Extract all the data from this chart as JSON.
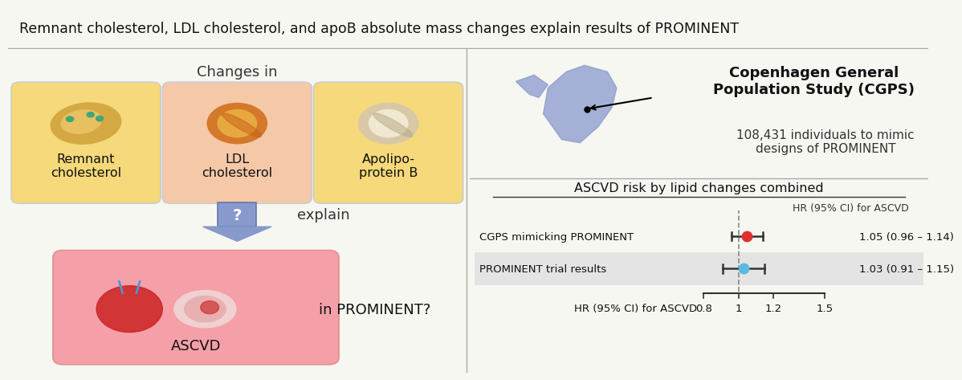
{
  "title": "Remnant cholesterol, LDL cholesterol, and apoB absolute mass changes explain results of PROMINENT",
  "title_fontsize": 12.5,
  "title_bg": "#e8e8e8",
  "left_bg": "#f7f7f2",
  "box1_color": "#f5d97a",
  "box2_color": "#f5c8a8",
  "box3_color": "#f5d97a",
  "box_label1": "Remnant\ncholesterol",
  "box_label2": "LDL\ncholesterol",
  "box_label3": "Apolipo-\nprotein B",
  "changes_in_label": "Changes in",
  "arrow_question": "?",
  "explain_label": "explain",
  "ascvd_label": "ASCVD",
  "ascvd_box_color": "#f5a0a8",
  "in_prominent_label": "in PROMINENT?",
  "cgps_title": "Copenhagen General\nPopulation Study (CGPS)",
  "cgps_subtitle": "108,431 individuals to mimic\ndesigns of PROMINENT",
  "forest_title": "ASCVD risk by lipid changes combined",
  "forest_col_header": "HR (95% CI) for ASCVD",
  "forest_rows": [
    {
      "label": "CGPS mimicking PROMINENT",
      "hr": 1.05,
      "ci_lo": 0.96,
      "ci_hi": 1.14,
      "text": "1.05 (0.96 – 1.14)",
      "color": "#e03030",
      "bg": "#ffffff"
    },
    {
      "label": "PROMINENT trial results",
      "hr": 1.03,
      "ci_lo": 0.91,
      "ci_hi": 1.15,
      "text": "1.03 (0.91 – 1.15)",
      "color": "#5bb8e0",
      "bg": "#e0e0e0"
    }
  ],
  "xaxis_label": "HR (95% CI) for ASCVD",
  "xaxis_ticks": [
    0.8,
    1.0,
    1.2,
    1.5
  ],
  "xmin": 0.72,
  "xmax": 1.62,
  "ref_line": 1.0,
  "arrow_color": "#8899cc",
  "divider_color": "#aaaaaa"
}
